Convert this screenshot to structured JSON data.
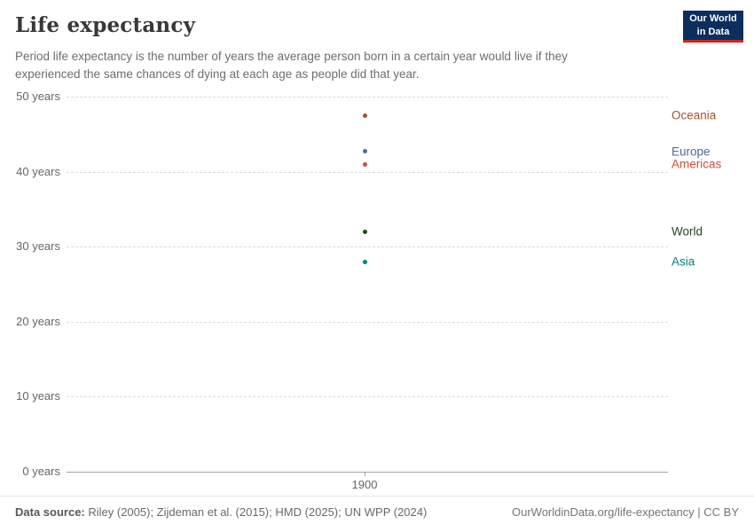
{
  "header": {
    "title": "Life expectancy",
    "subtitle": "Period life expectancy is the number of years the average person born in a certain year would live if they experienced the same chances of dying at each age as people did that year.",
    "logo": {
      "line1": "Our World",
      "line2": "in Data"
    }
  },
  "chart_data": {
    "type": "scatter",
    "title": "Life expectancy",
    "xlabel": "",
    "ylabel": "years",
    "ylim": [
      0,
      50
    ],
    "grid": "dashed horizontal",
    "legend_position": "right-of-points",
    "x_ticks": [
      {
        "label": "1900",
        "x": 1900
      }
    ],
    "y_ticks": [
      {
        "value": 0,
        "label": "0 years"
      },
      {
        "value": 10,
        "label": "10 years"
      },
      {
        "value": 20,
        "label": "20 years"
      },
      {
        "value": 30,
        "label": "30 years"
      },
      {
        "value": 40,
        "label": "40 years"
      },
      {
        "value": 50,
        "label": "50 years"
      }
    ],
    "series": [
      {
        "name": "Oceania",
        "x": 1900,
        "value": 47.5,
        "color": "#a05532"
      },
      {
        "name": "Europe",
        "x": 1900,
        "value": 42.7,
        "color": "#4c6a9c"
      },
      {
        "name": "Americas",
        "x": 1900,
        "value": 41.0,
        "color": "#c7523f"
      },
      {
        "name": "World",
        "x": 1900,
        "value": 32.0,
        "color": "#224922"
      },
      {
        "name": "Asia",
        "x": 1900,
        "value": 28.0,
        "color": "#00847e"
      }
    ]
  },
  "footer": {
    "data_source_label": "Data source:",
    "data_source_text": " Riley (2005); Zijdeman et al. (2015); HMD (2025); UN WPP (2024)",
    "attribution": "OurWorldinData.org/life-expectancy | CC BY"
  }
}
